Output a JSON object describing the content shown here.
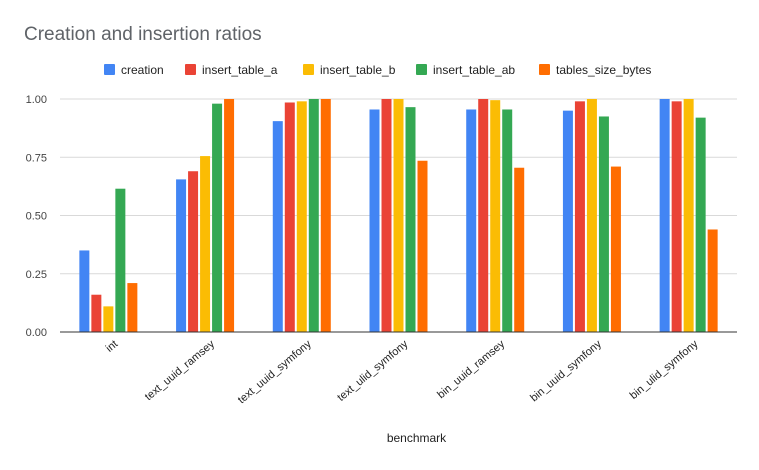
{
  "chart_data": {
    "type": "bar",
    "title": "Creation and insertion ratios",
    "xlabel": "benchmark",
    "ylabel": "",
    "ylim": [
      0,
      1
    ],
    "yticks": [
      "0.00",
      "0.25",
      "0.50",
      "0.75",
      "1.00"
    ],
    "ytick_values": [
      0,
      0.25,
      0.5,
      0.75,
      1.0
    ],
    "grid": true,
    "legend_position": "top",
    "categories": [
      "int",
      "text_uuid_ramsey",
      "text_uuid_symfony",
      "text_ulid_symfony",
      "bin_uuid_ramsey",
      "bin_uuid_symfony",
      "bin_ulid_symfony"
    ],
    "series": [
      {
        "name": "creation",
        "color": "#4285f4",
        "values": [
          0.35,
          0.655,
          0.905,
          0.955,
          0.955,
          0.95,
          1.0
        ]
      },
      {
        "name": "insert_table_a",
        "color": "#ea4335",
        "values": [
          0.16,
          0.69,
          0.985,
          1.0,
          1.0,
          0.99,
          0.99
        ]
      },
      {
        "name": "insert_table_b",
        "color": "#fbbc04",
        "values": [
          0.11,
          0.755,
          0.99,
          1.0,
          0.995,
          1.0,
          1.0
        ]
      },
      {
        "name": "insert_table_ab",
        "color": "#34a853",
        "values": [
          0.615,
          0.98,
          1.0,
          0.965,
          0.955,
          0.925,
          0.92
        ]
      },
      {
        "name": "tables_size_bytes",
        "color": "#ff6d01",
        "values": [
          0.21,
          1.0,
          1.0,
          0.735,
          0.705,
          0.71,
          0.44
        ]
      }
    ]
  }
}
